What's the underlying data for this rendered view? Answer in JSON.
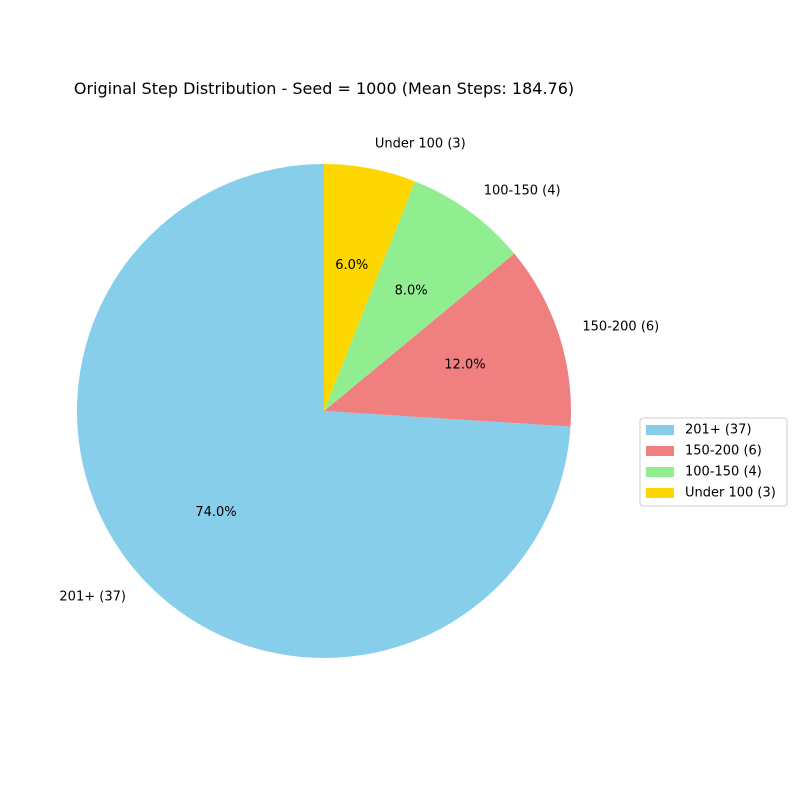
{
  "chart_data": {
    "type": "pie",
    "title": "Original Step Distribution - Seed = 1000 (Mean Steps: 184.76)",
    "start_angle_deg": 90,
    "direction": "counterclockwise",
    "legend_position": "right",
    "slices": [
      {
        "label": "201+ (37)",
        "value": 37,
        "percent_label": "74.0%",
        "color": "#87CEEB"
      },
      {
        "label": "150-200 (6)",
        "value": 6,
        "percent_label": "12.0%",
        "color": "#F08080"
      },
      {
        "label": "100-150 (4)",
        "value": 4,
        "percent_label": "8.0%",
        "color": "#90EE90"
      },
      {
        "label": "Under 100 (3)",
        "value": 3,
        "percent_label": "6.0%",
        "color": "#FFD700"
      }
    ]
  }
}
